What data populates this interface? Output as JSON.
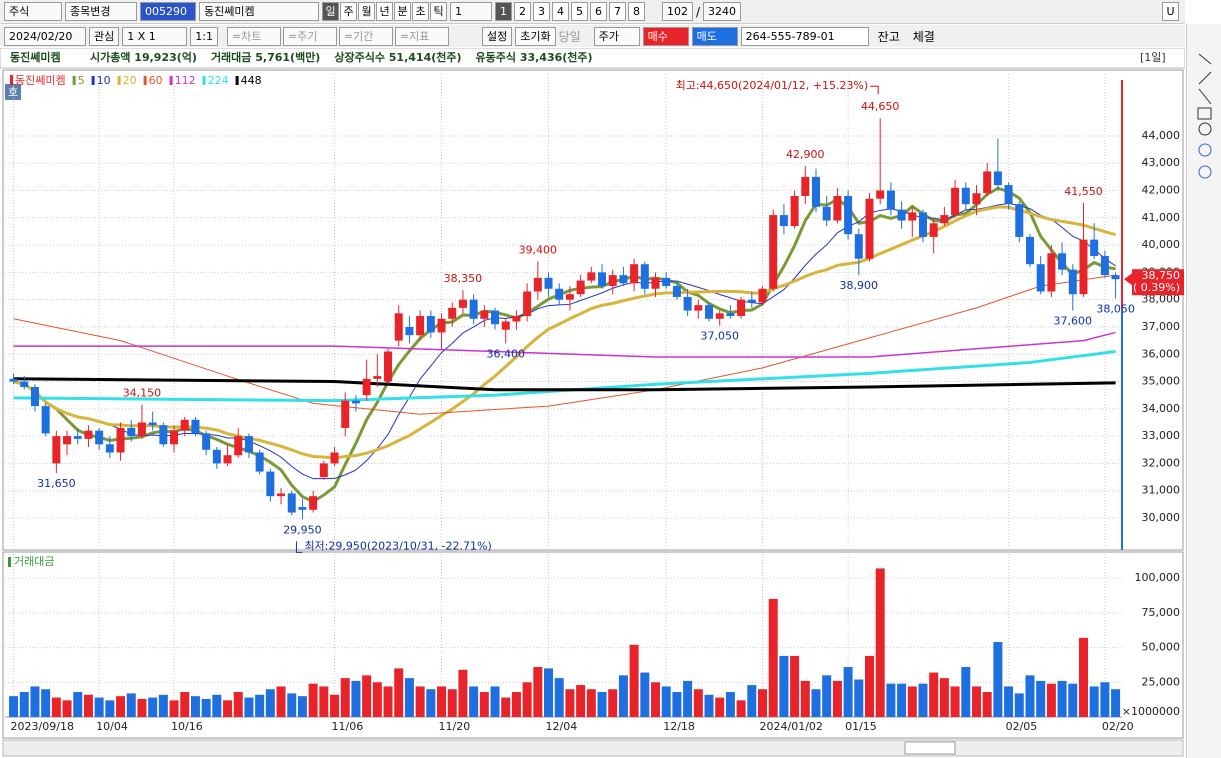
{
  "toolbar": {
    "market": "주식",
    "change": "종목변경",
    "code": "005290",
    "name": "동진쎄미켐",
    "periods": [
      "일",
      "주",
      "월",
      "년",
      "분",
      "초",
      "틱"
    ],
    "period_n": "1",
    "pages": [
      "1",
      "2",
      "3",
      "4",
      "5",
      "6",
      "7",
      "8"
    ],
    "count": "102",
    "sep": "/",
    "total": "3240",
    "u": "U"
  },
  "toolbar2": {
    "date": "2024/02/20",
    "watch": "관심",
    "layout": "1 X 1",
    "one": "1:1",
    "menus": [
      "=차트",
      "=주기",
      "=기간",
      "=지표"
    ],
    "settings": "설정",
    "reset": "초기화",
    "today": "당일",
    "price": "주가",
    "buy": "매수",
    "sell": "매도",
    "account": "264-555-789-01",
    "balance": "잔고",
    "filled": "체결"
  },
  "info": {
    "name": "동진쎄미켐",
    "items": [
      "시가총액 19,923(억)",
      "거래대금 5,761(백만)",
      "상장주식수 51,414(천주)",
      "유동주식 33,436(천주)"
    ],
    "period": "[1일]"
  },
  "hoga": "호",
  "chart_data": {
    "type": "candlestick",
    "name": "동진쎄미켐",
    "up_color": "#e8242a",
    "down_color": "#1e6fe0",
    "candles": [
      [
        35100,
        35300,
        34900,
        35000
      ],
      [
        35000,
        35200,
        34700,
        34800
      ],
      [
        34800,
        34900,
        33900,
        34100
      ],
      [
        34100,
        34200,
        33000,
        33100
      ],
      [
        32000,
        33200,
        31650,
        33000
      ],
      [
        32700,
        33200,
        32300,
        33000
      ],
      [
        33000,
        33300,
        32700,
        32900
      ],
      [
        32900,
        33400,
        32600,
        33200
      ],
      [
        33200,
        33300,
        32500,
        32700
      ],
      [
        32700,
        33000,
        32200,
        32400
      ],
      [
        32400,
        33500,
        32100,
        33300
      ],
      [
        33300,
        33600,
        32800,
        33000
      ],
      [
        33000,
        34150,
        32900,
        33500
      ],
      [
        33500,
        33900,
        33200,
        33400
      ],
      [
        33400,
        33500,
        32600,
        32700
      ],
      [
        32700,
        33400,
        32400,
        33200
      ],
      [
        33200,
        33700,
        33000,
        33600
      ],
      [
        33600,
        33700,
        33000,
        33100
      ],
      [
        33100,
        33200,
        32300,
        32500
      ],
      [
        32500,
        32600,
        31800,
        32000
      ],
      [
        32000,
        32700,
        31900,
        32300
      ],
      [
        32300,
        33300,
        32200,
        33000
      ],
      [
        33000,
        33100,
        32200,
        32400
      ],
      [
        32400,
        32500,
        31600,
        31700
      ],
      [
        31700,
        31800,
        30600,
        30800
      ],
      [
        30800,
        31100,
        30500,
        30900
      ],
      [
        30900,
        31000,
        30100,
        30200
      ],
      [
        30400,
        30700,
        29950,
        30300
      ],
      [
        30300,
        31000,
        30200,
        30800
      ],
      [
        31500,
        32100,
        31400,
        32000
      ],
      [
        32000,
        32600,
        31900,
        32400
      ],
      [
        33300,
        34600,
        33000,
        34300
      ],
      [
        34300,
        34500,
        33900,
        34200
      ],
      [
        34500,
        35800,
        34300,
        35100
      ],
      [
        35100,
        36000,
        34800,
        35200
      ],
      [
        35000,
        36200,
        34900,
        36100
      ],
      [
        36500,
        37800,
        36300,
        37500
      ],
      [
        37000,
        37400,
        36400,
        36700
      ],
      [
        36700,
        37600,
        36500,
        37400
      ],
      [
        37400,
        37600,
        36600,
        36800
      ],
      [
        36800,
        37500,
        36200,
        37300
      ],
      [
        37300,
        37900,
        37000,
        37700
      ],
      [
        37700,
        38350,
        37500,
        38000
      ],
      [
        38000,
        38200,
        37100,
        37300
      ],
      [
        37300,
        37800,
        37000,
        37600
      ],
      [
        37600,
        37700,
        36900,
        37100
      ],
      [
        36900,
        37300,
        36400,
        37200
      ],
      [
        37200,
        37600,
        36900,
        37400
      ],
      [
        37400,
        38600,
        37200,
        38300
      ],
      [
        38300,
        39400,
        38000,
        38800
      ],
      [
        38800,
        39000,
        38100,
        38400
      ],
      [
        38400,
        38600,
        37800,
        38000
      ],
      [
        38000,
        38500,
        37600,
        38200
      ],
      [
        38200,
        38900,
        38100,
        38700
      ],
      [
        38700,
        39200,
        38600,
        39000
      ],
      [
        39000,
        39300,
        38400,
        38500
      ],
      [
        38500,
        39100,
        38200,
        38900
      ],
      [
        38900,
        39200,
        38500,
        38600
      ],
      [
        38600,
        39500,
        38300,
        39300
      ],
      [
        39300,
        39400,
        38200,
        38400
      ],
      [
        38400,
        39000,
        38100,
        38800
      ],
      [
        38800,
        39000,
        38400,
        38500
      ],
      [
        38500,
        38700,
        38000,
        38100
      ],
      [
        38100,
        38400,
        37400,
        37600
      ],
      [
        37600,
        38000,
        37300,
        37800
      ],
      [
        37800,
        37900,
        37200,
        37300
      ],
      [
        37300,
        37600,
        37050,
        37500
      ],
      [
        37500,
        37800,
        37300,
        37400
      ],
      [
        37400,
        38100,
        37300,
        38000
      ],
      [
        38000,
        38300,
        37700,
        37900
      ],
      [
        37900,
        38500,
        37800,
        38400
      ],
      [
        38400,
        41300,
        38300,
        41100
      ],
      [
        41100,
        41500,
        40400,
        40700
      ],
      [
        40700,
        42000,
        40600,
        41800
      ],
      [
        41800,
        42900,
        41500,
        42500
      ],
      [
        42500,
        42800,
        41200,
        41400
      ],
      [
        41400,
        41800,
        40700,
        40900
      ],
      [
        40900,
        42100,
        40800,
        41800
      ],
      [
        41800,
        42000,
        40200,
        40400
      ],
      [
        40400,
        40600,
        38900,
        39500
      ],
      [
        39500,
        41900,
        39400,
        41700
      ],
      [
        41700,
        44650,
        41500,
        42000
      ],
      [
        42000,
        42300,
        41100,
        41300
      ],
      [
        41300,
        41600,
        40600,
        40900
      ],
      [
        40900,
        41400,
        40300,
        41200
      ],
      [
        41200,
        41300,
        40100,
        40300
      ],
      [
        40300,
        41000,
        39700,
        40800
      ],
      [
        40800,
        41400,
        40700,
        41100
      ],
      [
        41100,
        42400,
        41000,
        42100
      ],
      [
        42100,
        42300,
        41300,
        41500
      ],
      [
        41500,
        42200,
        41100,
        41900
      ],
      [
        41900,
        43000,
        41800,
        42700
      ],
      [
        42700,
        43900,
        42000,
        42200
      ],
      [
        42200,
        42300,
        41300,
        41500
      ],
      [
        41500,
        41600,
        40100,
        40300
      ],
      [
        40300,
        40400,
        39200,
        39300
      ],
      [
        39300,
        39600,
        38200,
        38300
      ],
      [
        38300,
        40000,
        38100,
        39700
      ],
      [
        39700,
        40100,
        38900,
        39100
      ],
      [
        39100,
        39300,
        37600,
        38200
      ],
      [
        38200,
        41550,
        38100,
        40200
      ],
      [
        40200,
        40800,
        39500,
        39600
      ],
      [
        39600,
        39800,
        38800,
        38900
      ],
      [
        38900,
        39000,
        38050,
        38750
      ]
    ],
    "ma": [
      {
        "name": "5",
        "color": "#7a9a35",
        "width": 3
      },
      {
        "name": "10",
        "color": "#2233cc",
        "width": 1
      },
      {
        "name": "20",
        "color": "#d9b43a",
        "width": 3
      },
      {
        "name": "60",
        "color": "#e8552b",
        "width": 1,
        "x": [
          0,
          10,
          20,
          28,
          38,
          50,
          60,
          70,
          80,
          90,
          96,
          103
        ],
        "values": [
          37300,
          36500,
          35200,
          34200,
          33800,
          34100,
          34700,
          35500,
          36600,
          37700,
          38500,
          38900
        ]
      },
      {
        "name": "112",
        "color": "#cc33cc",
        "width": 1.5,
        "x": [
          0,
          30,
          60,
          80,
          90,
          100,
          103
        ],
        "values": [
          36300,
          36300,
          35900,
          35900,
          36200,
          36500,
          36800
        ]
      },
      {
        "name": "224",
        "color": "#33e0e8",
        "width": 3,
        "x": [
          0,
          30,
          45,
          60,
          80,
          95,
          103
        ],
        "values": [
          34400,
          34300,
          34500,
          34900,
          35300,
          35700,
          36100
        ]
      },
      {
        "name": "448",
        "color": "#000000",
        "width": 3,
        "x": [
          0,
          30,
          45,
          60,
          80,
          95,
          103
        ],
        "values": [
          35100,
          35000,
          34700,
          34700,
          34800,
          34900,
          34950
        ]
      }
    ],
    "ylim": [
      28900,
      46050
    ],
    "yticks": [
      {
        "value": 30000,
        "label": "30,000"
      },
      {
        "value": 31000,
        "label": "31,000"
      },
      {
        "value": 32000,
        "label": "32,000"
      },
      {
        "value": 33000,
        "label": "33,000"
      },
      {
        "value": 34000,
        "label": "34,000"
      },
      {
        "value": 35000,
        "label": "35,000"
      },
      {
        "value": 36000,
        "label": "36,000"
      },
      {
        "value": 37000,
        "label": "37,000"
      },
      {
        "value": 38000,
        "label": "38,000"
      },
      {
        "value": 39000,
        "label": "39,000"
      },
      {
        "value": 40000,
        "label": "40,000"
      },
      {
        "value": 41000,
        "label": "41,000"
      },
      {
        "value": 42000,
        "label": "42,000"
      },
      {
        "value": 43000,
        "label": "43,000"
      },
      {
        "value": 44000,
        "label": "44,000"
      }
    ],
    "xlim": [
      -0.8,
      103.6
    ],
    "xticks": [
      {
        "value": 0,
        "label": "2023/09/18"
      },
      {
        "value": 8,
        "label": "10/04"
      },
      {
        "value": 15,
        "label": "10/16"
      },
      {
        "value": 30,
        "label": "11/06"
      },
      {
        "value": 40,
        "label": "11/20"
      },
      {
        "value": 50,
        "label": "12/04"
      },
      {
        "value": 61,
        "label": "12/18"
      },
      {
        "value": 70,
        "label": "2024/01/02"
      },
      {
        "value": 78,
        "label": "01/15"
      },
      {
        "value": 93,
        "label": "02/05"
      },
      {
        "value": 102,
        "label": "02/20"
      }
    ],
    "annotations": [
      {
        "x": 81,
        "value": 44650,
        "label": "44,650"
      },
      {
        "x": 74,
        "value": 42900,
        "label": "42,900"
      },
      {
        "x": 100,
        "value": 41550,
        "label": "41,550"
      },
      {
        "x": 49,
        "value": 39400,
        "label": "39,400"
      },
      {
        "x": 42,
        "value": 38350,
        "label": "38,350"
      },
      {
        "x": 12,
        "value": 34150,
        "label": "34,150"
      },
      {
        "x": 4,
        "value": 31650,
        "label": "31,650"
      },
      {
        "x": 27,
        "value": 29950,
        "label": "29,950"
      },
      {
        "x": 46,
        "value": 36400,
        "label": "36,400"
      },
      {
        "x": 66,
        "value": 37050,
        "label": "37,050"
      },
      {
        "x": 79,
        "value": 38900,
        "label": "38,900"
      },
      {
        "x": 99,
        "value": 37600,
        "label": "37,600"
      },
      {
        "x": 103,
        "value": 38050,
        "label": "38,050"
      }
    ],
    "high_note": "최고:44,650(2024/01/12, +15.23%)",
    "low_note": "최저:29,950(2023/10/31, -22.71%)",
    "last_price": {
      "value": 38750,
      "label": "38,750",
      "change": "( 0.39%)"
    },
    "volume": {
      "title": "거래대금",
      "unit": "×1000000",
      "ylim": [
        0,
        114500
      ],
      "values": [
        15000,
        18000,
        22000,
        20000,
        14000,
        12000,
        18000,
        16000,
        14000,
        12000,
        15000,
        17000,
        13000,
        14000,
        16000,
        12000,
        18000,
        15000,
        13000,
        16000,
        12000,
        18000,
        14000,
        16000,
        20000,
        22000,
        17000,
        15000,
        24000,
        22000,
        16000,
        28000,
        26000,
        30000,
        25000,
        22000,
        35000,
        28000,
        22000,
        20000,
        22000,
        20000,
        34000,
        22000,
        18000,
        22000,
        14000,
        18000,
        25000,
        36000,
        35000,
        28000,
        20000,
        23000,
        20000,
        18000,
        20000,
        30000,
        52000,
        32000,
        25000,
        22000,
        18000,
        26000,
        20000,
        16000,
        14000,
        18000,
        12000,
        23000,
        20000,
        85000,
        44000,
        44000,
        26000,
        20000,
        30000,
        26000,
        36000,
        27000,
        44000,
        107000,
        24000,
        24000,
        22000,
        24000,
        32000,
        28000,
        22000,
        36000,
        22000,
        18000,
        54000,
        22000,
        17000,
        30000,
        26000,
        24000,
        26000,
        24000,
        57000,
        22000,
        25000,
        20000
      ],
      "yticks": [
        {
          "value": 25000,
          "label": "25,000"
        },
        {
          "value": 50000,
          "label": "50,000"
        },
        {
          "value": 75000,
          "label": "75,000"
        },
        {
          "value": 100000,
          "label": "100,000"
        }
      ]
    }
  }
}
